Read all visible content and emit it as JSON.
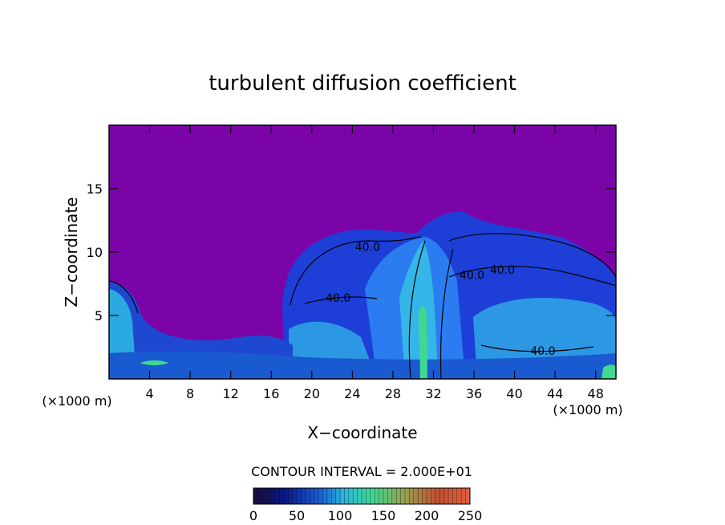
{
  "chart_data": {
    "type": "heatmap",
    "title": "turbulent diffusion coefficient",
    "xlabel": "X−coordinate",
    "ylabel": "Z−coordinate",
    "x_unit_left": "(×1000 m)",
    "x_unit_right": "(×1000 m)",
    "xlim": [
      0,
      50
    ],
    "ylim": [
      0,
      20
    ],
    "xticks": [
      4,
      8,
      12,
      16,
      20,
      24,
      28,
      32,
      36,
      40,
      44,
      48
    ],
    "yticks": [
      5,
      10,
      15
    ],
    "contour_interval_text": "CONTOUR INTERVAL = 2.000E+01",
    "contour_labels": [
      {
        "text": "40.0",
        "x": 25.5,
        "z": 10.4
      },
      {
        "text": "40.0",
        "x": 22.6,
        "z": 6.4
      },
      {
        "text": "40.0",
        "x": 35.8,
        "z": 8.2
      },
      {
        "text": "40.0",
        "x": 38.8,
        "z": 8.6
      },
      {
        "text": "40.0",
        "x": 42.8,
        "z": 2.2
      }
    ],
    "colorbar": {
      "min": 0,
      "max": 250,
      "ticks": [
        0,
        50,
        100,
        150,
        200,
        250
      ],
      "colors": [
        "#1a0a3a",
        "#0a1a8a",
        "#1a5ad0",
        "#2ab8e0",
        "#40d890",
        "#98a050",
        "#c05030",
        "#e06040"
      ]
    },
    "background_color": "#7a04a8"
  }
}
